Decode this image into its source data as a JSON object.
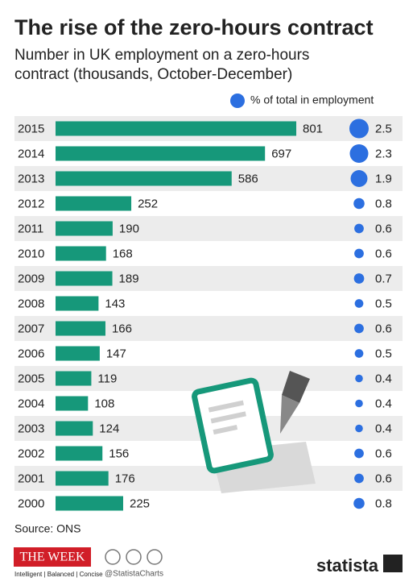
{
  "chart_data": {
    "type": "bar",
    "title": "The rise of the zero-hours contract",
    "subtitle": [
      "Number in UK employment on a zero-hours",
      "contract (thousands, October-December)"
    ],
    "categories": [
      "2015",
      "2014",
      "2013",
      "2012",
      "2011",
      "2010",
      "2009",
      "2008",
      "2007",
      "2006",
      "2005",
      "2004",
      "2003",
      "2002",
      "2001",
      "2000"
    ],
    "series": [
      {
        "color": "#16987a",
        "values": [
          801,
          697,
          586,
          252,
          190,
          168,
          189,
          143,
          166,
          147,
          119,
          108,
          124,
          156,
          176,
          225
        ]
      },
      {
        "name": "% of total in employment",
        "color": "#2c6fe0",
        "values": [
          2.5,
          2.3,
          1.9,
          0.8,
          0.6,
          0.6,
          0.7,
          0.5,
          0.6,
          0.5,
          0.4,
          0.4,
          0.4,
          0.6,
          0.6,
          0.8
        ]
      }
    ],
    "source": "Source: ONS"
  },
  "footer": {
    "logo": "THE WEEK",
    "tagline": "Intelligent | Balanced | Concise",
    "handle": "@StatistaCharts",
    "brand": "statista"
  }
}
